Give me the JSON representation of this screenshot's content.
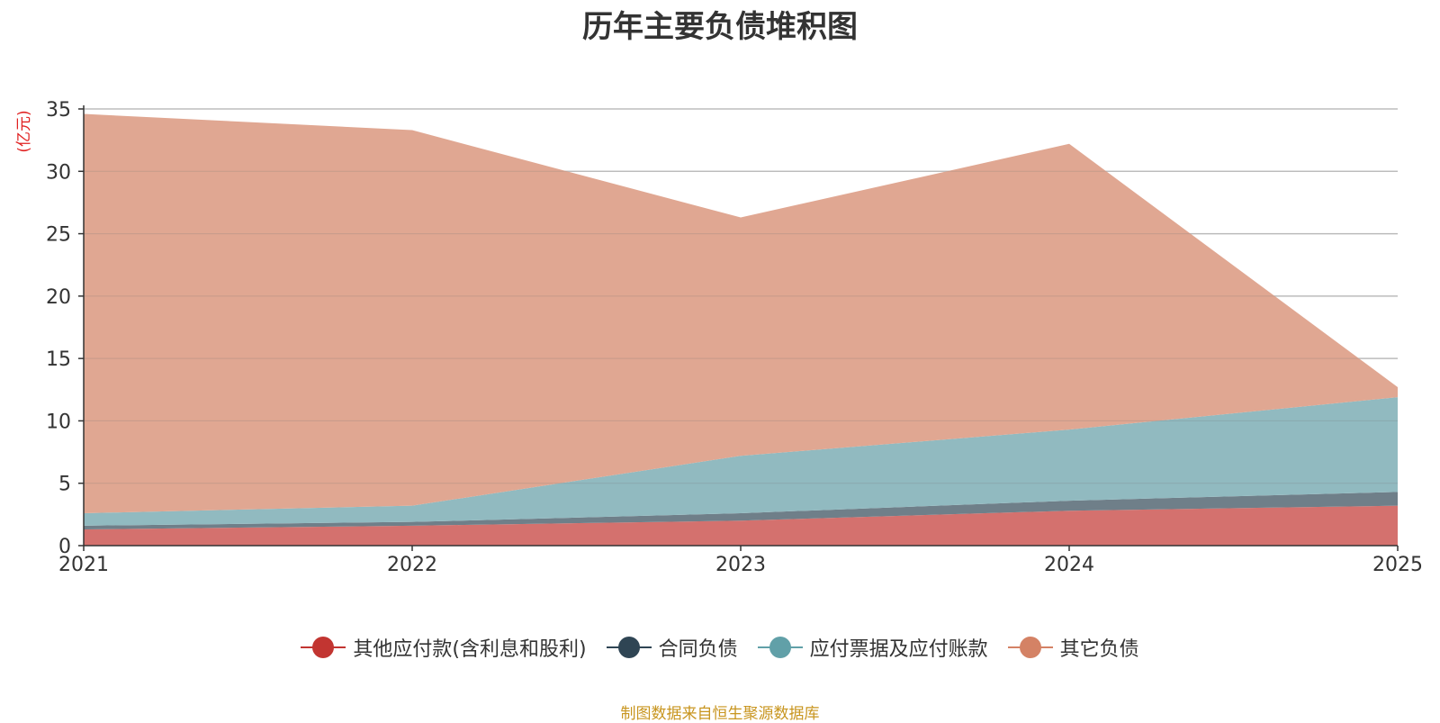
{
  "chart_data": {
    "type": "area",
    "stacked": true,
    "title": "历年主要负债堆积图",
    "ylabel": "(亿元)",
    "xlabel": "",
    "categories": [
      "2021",
      "2022",
      "2023",
      "2024",
      "2025"
    ],
    "ylim": [
      0,
      35
    ],
    "yticks": [
      0,
      5,
      10,
      15,
      20,
      25,
      30,
      35
    ],
    "grid": true,
    "legend_position": "bottom-center",
    "series": [
      {
        "name": "其他应付款(含利息和股利)",
        "color": "#c23531",
        "fill": "#d4716e",
        "values": [
          1.3,
          1.6,
          2.0,
          2.8,
          3.2
        ]
      },
      {
        "name": "合同负债",
        "color": "#2f4554",
        "fill": "#6f7f89",
        "values": [
          0.3,
          0.3,
          0.6,
          0.8,
          1.1
        ]
      },
      {
        "name": "应付票据及应付账款",
        "color": "#61a0a8",
        "fill": "#91bac0",
        "values": [
          1.0,
          1.3,
          4.6,
          5.7,
          7.6
        ]
      },
      {
        "name": "其它负债",
        "color": "#d48265",
        "fill": "#e0a792",
        "values": [
          32.0,
          30.1,
          19.1,
          22.9,
          0.8
        ]
      }
    ]
  },
  "source_note": "制图数据来自恒生聚源数据库"
}
